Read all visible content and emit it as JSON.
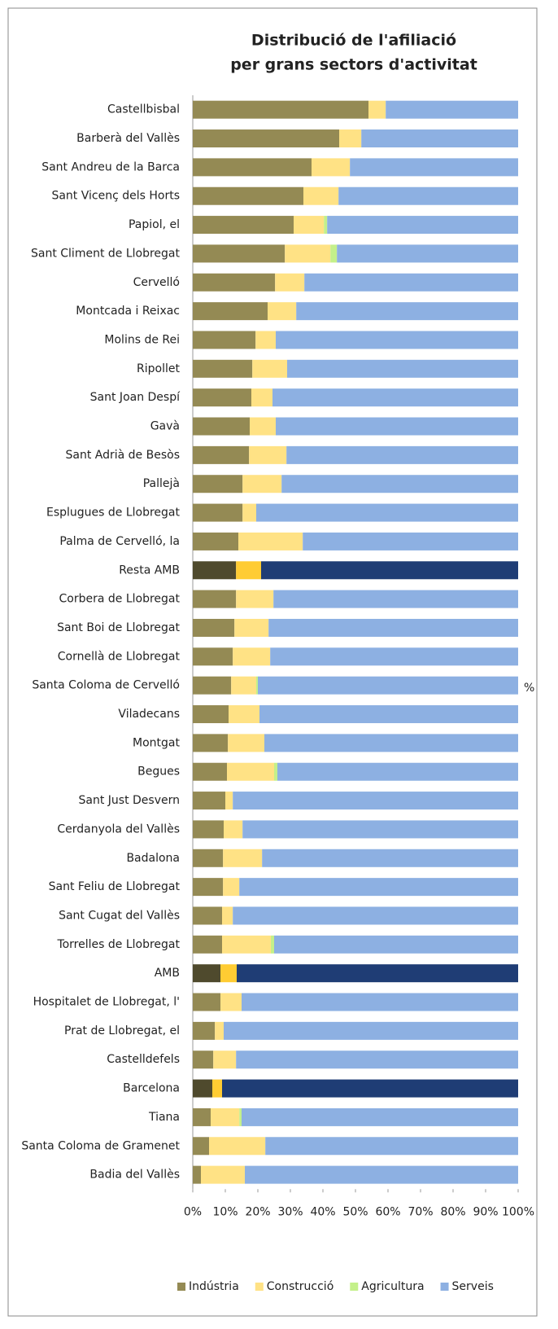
{
  "chart_data": {
    "type": "stacked_barh",
    "title": [
      "Distribució de l'afiliació",
      "per grans sectors d'activitat"
    ],
    "x_axis_label": "%",
    "categories": [
      "Castellbisbal",
      "Barberà del Vallès",
      "Sant Andreu de la Barca",
      "Sant Vicenç dels Horts",
      "Papiol, el",
      "Sant Climent de Llobregat",
      "Cervelló",
      "Montcada i Reixac",
      "Molins de Rei",
      "Ripollet",
      "Sant Joan Despí",
      "Gavà",
      "Sant Adrià de Besòs",
      "Pallejà",
      "Esplugues de Llobregat",
      "Palma de Cervelló, la",
      "Resta AMB",
      "Corbera de Llobregat",
      "Sant Boi de Llobregat",
      "Cornellà de Llobregat",
      "Santa Coloma de Cervelló",
      "Viladecans",
      "Montgat",
      "Begues",
      "Sant Just Desvern",
      "Cerdanyola del Vallès",
      "Badalona",
      "Sant Feliu de Llobregat",
      "Sant Cugat del Vallès",
      "Torrelles de Llobregat",
      "AMB",
      "Hospitalet de Llobregat, l'",
      "Prat de Llobregat, el",
      "Castelldefels",
      "Barcelona",
      "Tiana",
      "Santa Coloma de Gramenet",
      "Badia del Vallès"
    ],
    "highlight_categories": [
      16,
      30,
      34
    ],
    "series": [
      {
        "name": "Indústria",
        "color": "#948a54",
        "highlight_color": "#4f4a2d",
        "values": [
          54,
          45,
          36.5,
          34,
          31,
          28.3,
          25.3,
          23,
          19.3,
          18.3,
          18,
          17.5,
          17.3,
          15.3,
          15.3,
          14,
          13.3,
          13.3,
          12.8,
          12.3,
          11.8,
          11,
          10.8,
          10.5,
          10,
          9.5,
          9.3,
          9.3,
          9,
          9,
          8.5,
          8.5,
          6.8,
          6.3,
          6,
          5.5,
          5,
          2.5
        ]
      },
      {
        "name": "Construcció",
        "color": "#ffe285",
        "highlight_color": "#ffcc33",
        "values": [
          5.3,
          6.8,
          11.8,
          10.8,
          9.3,
          14,
          9,
          8.8,
          6.2,
          10.7,
          6.5,
          8,
          11.5,
          12,
          4.2,
          19.8,
          7.7,
          11.5,
          10.5,
          11.5,
          7.7,
          9.5,
          11.2,
          14.5,
          2.3,
          5.8,
          12,
          5,
          3.3,
          15,
          5,
          6.5,
          2.7,
          7,
          3,
          8.8,
          17.3,
          13.5
        ]
      },
      {
        "name": "Agricultura",
        "color": "#c4f08a",
        "highlight_color": "#8cc63f",
        "values": [
          0,
          0,
          0,
          0,
          1,
          2,
          0,
          0,
          0,
          0,
          0,
          0,
          0,
          0,
          0,
          0,
          0,
          0,
          0,
          0,
          0.5,
          0,
          0,
          1,
          0,
          0,
          0,
          0,
          0,
          1,
          0,
          0,
          0,
          0,
          0,
          0.7,
          0,
          0
        ]
      },
      {
        "name": "Serveis",
        "color": "#8db0e2",
        "highlight_color": "#1f3d75",
        "values": [
          40.7,
          48.2,
          51.7,
          55.2,
          58.7,
          55.7,
          65.7,
          68.2,
          74.5,
          71,
          75.5,
          74.5,
          71.2,
          72.7,
          80.5,
          66.2,
          79,
          75.2,
          76.7,
          76.2,
          80,
          79.5,
          78,
          74,
          87.7,
          84.7,
          78.7,
          85.7,
          87.7,
          75,
          86.5,
          85,
          90.5,
          86.7,
          91,
          85,
          77.7,
          84
        ]
      }
    ],
    "xlim": [
      0,
      100
    ],
    "xticks": [
      {
        "value": 0,
        "label": "0%"
      },
      {
        "value": 10,
        "label": "10%"
      },
      {
        "value": 20,
        "label": "20%"
      },
      {
        "value": 30,
        "label": "30%"
      },
      {
        "value": 40,
        "label": "40%"
      },
      {
        "value": 50,
        "label": "50%"
      },
      {
        "value": 60,
        "label": "60%"
      },
      {
        "value": 70,
        "label": "70%"
      },
      {
        "value": 80,
        "label": "80%"
      },
      {
        "value": 90,
        "label": "90%"
      },
      {
        "value": 100,
        "label": "100%"
      }
    ],
    "legend": "bottom"
  }
}
